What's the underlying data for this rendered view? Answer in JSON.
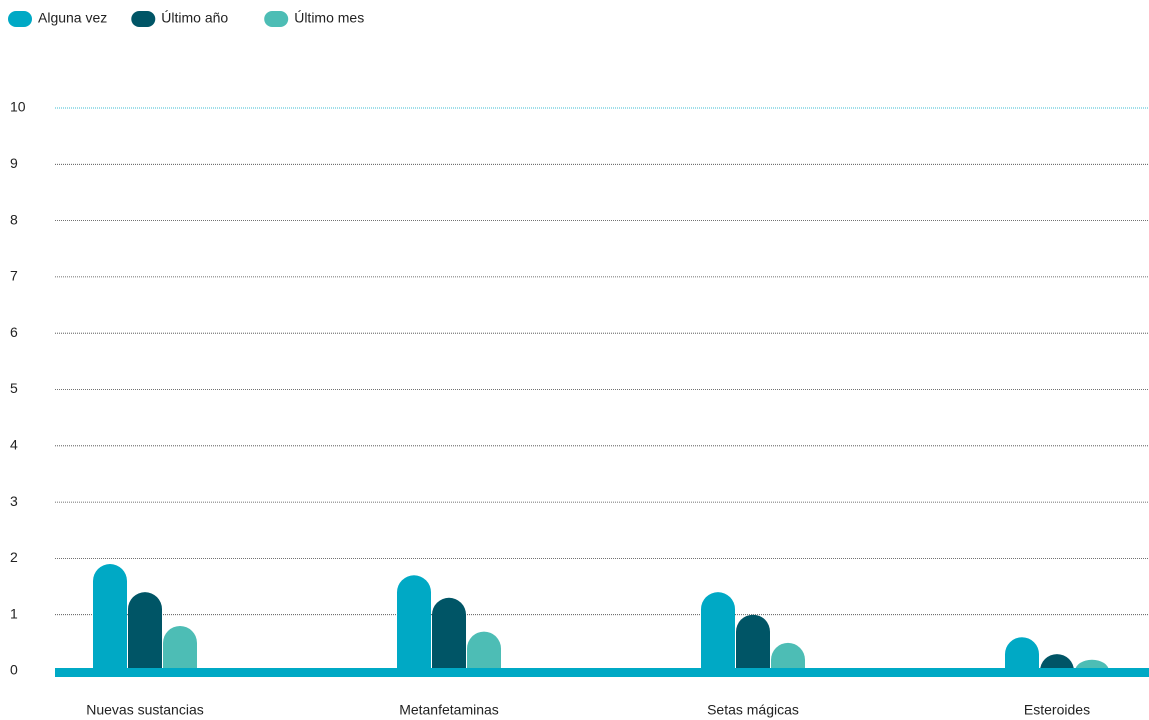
{
  "chart_data": {
    "type": "bar",
    "categories": [
      "Nuevas sustancias",
      "Metanfetaminas",
      "Setas mágicas",
      "Esteroides"
    ],
    "series": [
      {
        "name": "Alguna vez",
        "color": "#00a9c5",
        "values": [
          1.9,
          1.7,
          1.4,
          0.6
        ]
      },
      {
        "name": "Último año",
        "color": "#005566",
        "values": [
          1.4,
          1.3,
          1.0,
          0.3
        ]
      },
      {
        "name": "Último mes",
        "color": "#4dbdb5",
        "values": [
          0.8,
          0.7,
          0.5,
          0.2
        ]
      }
    ],
    "ylim": [
      0,
      10
    ],
    "yticks": [
      0,
      1,
      2,
      3,
      4,
      5,
      6,
      7,
      8,
      9,
      10
    ],
    "grid": true,
    "legend": "top-left"
  }
}
